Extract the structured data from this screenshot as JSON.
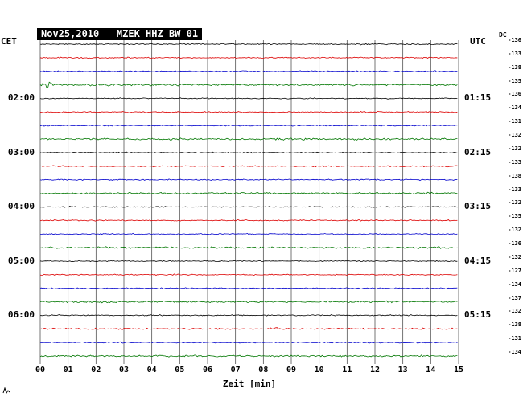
{
  "header": {
    "title": "Nov25,2010   MZEK HHZ BW 01"
  },
  "axes": {
    "left_header": "CET",
    "right_header": "UTC",
    "dc_header": "DC",
    "left_labels": [
      {
        "row": 4,
        "text": "02:00"
      },
      {
        "row": 8,
        "text": "03:00"
      },
      {
        "row": 12,
        "text": "04:00"
      },
      {
        "row": 16,
        "text": "05:00"
      },
      {
        "row": 20,
        "text": "06:00"
      }
    ],
    "right_labels": [
      {
        "row": 4,
        "text": "01:15"
      },
      {
        "row": 8,
        "text": "02:15"
      },
      {
        "row": 12,
        "text": "03:15"
      },
      {
        "row": 16,
        "text": "04:15"
      },
      {
        "row": 20,
        "text": "05:15"
      }
    ],
    "x_ticks": [
      "00",
      "01",
      "02",
      "03",
      "04",
      "05",
      "06",
      "07",
      "08",
      "09",
      "10",
      "11",
      "12",
      "13",
      "14",
      "15"
    ],
    "x_title": "Zeit [min]"
  },
  "colors": {
    "background": "#ffffff",
    "grid": "#3a3a3a",
    "title_bg": "#000000",
    "title_fg": "#ffffff",
    "trace_black": "#000000",
    "trace_red": "#dd0000",
    "trace_blue": "#0000cc",
    "trace_green": "#007700"
  },
  "chart_data": {
    "type": "line",
    "variant": "helicorder-seismogram",
    "title": "Nov25,2010 MZEK HHZ BW 01",
    "xlabel": "Zeit [min]",
    "x_range_minutes": [
      0,
      15
    ],
    "minutes_per_row": 15,
    "grid": "vertical-only",
    "rows": [
      {
        "dc": -136,
        "color": "#000000",
        "noise": 0.65,
        "events": []
      },
      {
        "dc": -133,
        "color": "#dd0000",
        "noise": 0.7,
        "events": []
      },
      {
        "dc": -138,
        "color": "#0000cc",
        "noise": 0.7,
        "events": []
      },
      {
        "dc": -135,
        "color": "#007700",
        "noise": 1.1,
        "events": [
          {
            "minute": 0.25,
            "amp": 4.5,
            "dur": 0.35
          }
        ]
      },
      {
        "dc": -136,
        "color": "#000000",
        "noise": 0.6,
        "events": []
      },
      {
        "dc": -134,
        "color": "#dd0000",
        "noise": 0.7,
        "events": []
      },
      {
        "dc": -131,
        "color": "#0000cc",
        "noise": 0.65,
        "events": []
      },
      {
        "dc": -132,
        "color": "#007700",
        "noise": 1.0,
        "events": []
      },
      {
        "dc": -132,
        "color": "#000000",
        "noise": 0.6,
        "events": []
      },
      {
        "dc": -133,
        "color": "#dd0000",
        "noise": 0.7,
        "events": []
      },
      {
        "dc": -138,
        "color": "#0000cc",
        "noise": 0.65,
        "events": []
      },
      {
        "dc": -133,
        "color": "#007700",
        "noise": 1.05,
        "events": []
      },
      {
        "dc": -132,
        "color": "#000000",
        "noise": 0.6,
        "events": [
          {
            "minute": 1.1,
            "amp": 1.6,
            "dur": 0.12
          }
        ]
      },
      {
        "dc": -135,
        "color": "#dd0000",
        "noise": 0.7,
        "events": []
      },
      {
        "dc": -132,
        "color": "#0000cc",
        "noise": 0.65,
        "events": []
      },
      {
        "dc": -136,
        "color": "#007700",
        "noise": 1.0,
        "events": []
      },
      {
        "dc": -132,
        "color": "#000000",
        "noise": 0.6,
        "events": []
      },
      {
        "dc": -127,
        "color": "#dd0000",
        "noise": 0.7,
        "events": []
      },
      {
        "dc": -134,
        "color": "#0000cc",
        "noise": 0.65,
        "events": []
      },
      {
        "dc": -137,
        "color": "#007700",
        "noise": 1.05,
        "events": []
      },
      {
        "dc": -132,
        "color": "#000000",
        "noise": 0.65,
        "events": []
      },
      {
        "dc": -138,
        "color": "#dd0000",
        "noise": 0.85,
        "events": [
          {
            "minute": 8.35,
            "amp": 2.8,
            "dur": 0.3
          }
        ]
      },
      {
        "dc": -131,
        "color": "#0000cc",
        "noise": 0.7,
        "events": []
      },
      {
        "dc": -134,
        "color": "#007700",
        "noise": 1.0,
        "events": []
      }
    ]
  }
}
